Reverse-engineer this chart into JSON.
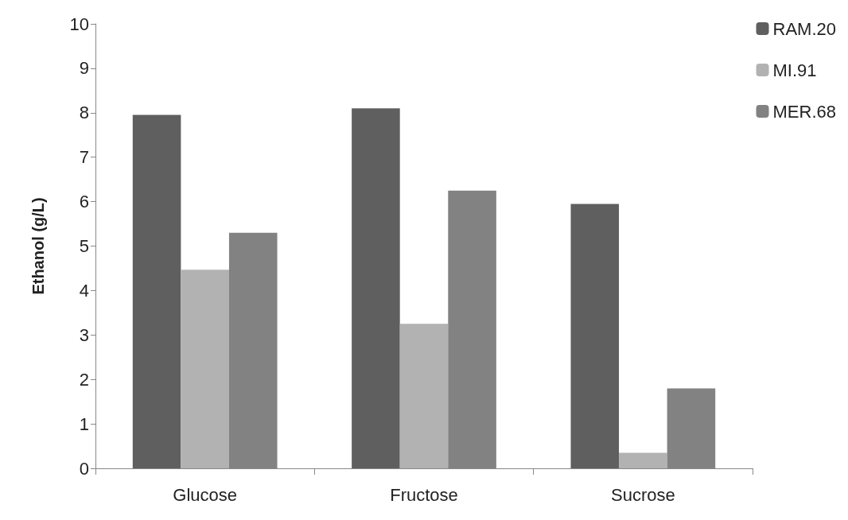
{
  "chart_data": {
    "type": "bar",
    "ylabel": "Ethanol (g/L)",
    "categories": [
      "Glucose",
      "Fructose",
      "Sucrose"
    ],
    "series": [
      {
        "name": "RAM.20",
        "color": "#5f5f5f",
        "values": [
          7.95,
          8.1,
          5.95
        ]
      },
      {
        "name": "MI.91",
        "color": "#b2b2b2",
        "values": [
          4.47,
          3.25,
          0.35
        ]
      },
      {
        "name": "MER.68",
        "color": "#828282",
        "values": [
          5.3,
          6.25,
          1.8
        ]
      }
    ],
    "ylim": [
      0,
      10
    ],
    "yticks": [
      0,
      1,
      2,
      3,
      4,
      5,
      6,
      7,
      8,
      9,
      10
    ],
    "grid": false,
    "legend": "top right"
  }
}
